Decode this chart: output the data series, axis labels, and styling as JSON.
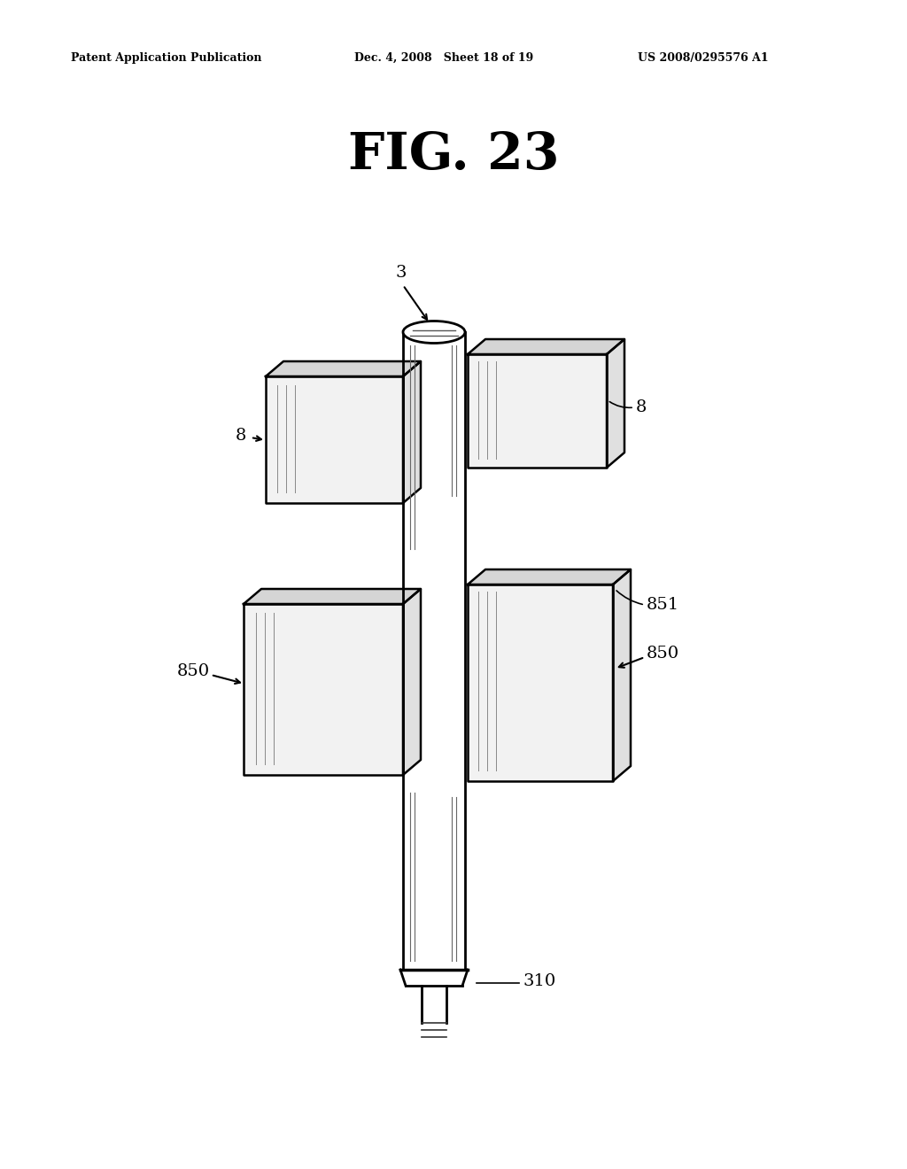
{
  "title": "FIG. 23",
  "header_left": "Patent Application Publication",
  "header_mid": "Dec. 4, 2008   Sheet 18 of 19",
  "header_right": "US 2008/0295576 A1",
  "bg_color": "#ffffff",
  "line_color": "#000000",
  "label_3": "3",
  "label_8_left": "8",
  "label_8_right": "8",
  "label_850_left": "850",
  "label_850_right": "850",
  "label_851": "851",
  "label_310": "310"
}
